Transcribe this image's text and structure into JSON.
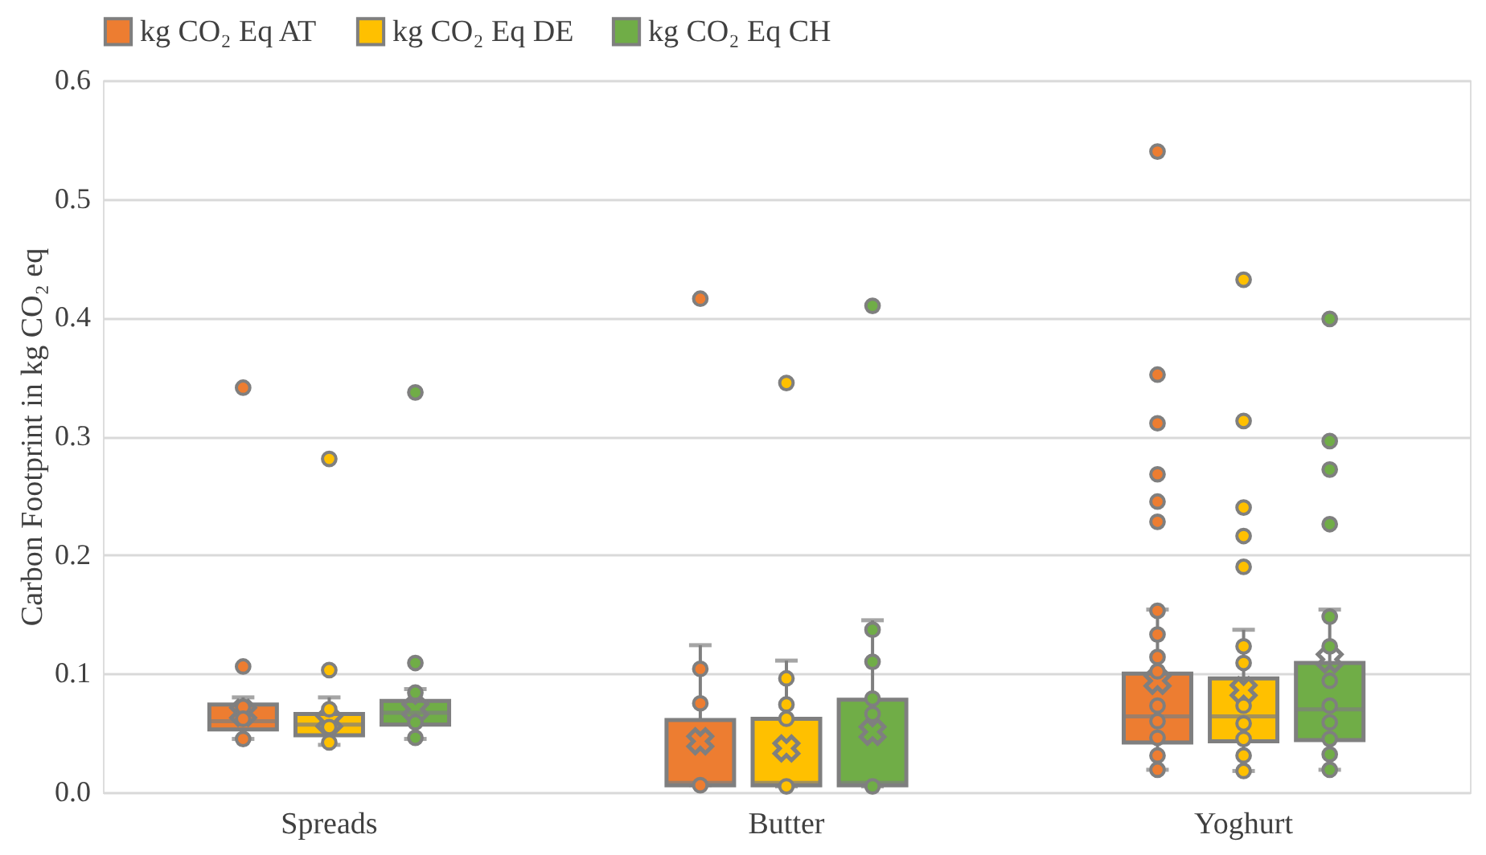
{
  "chart_data": {
    "type": "box",
    "ylabel": "Carbon Footprint in kg CO₂ eq",
    "categories": [
      "Spreads",
      "Butter",
      "Yoghurt"
    ],
    "ylim": [
      0,
      0.6
    ],
    "yticks": [
      {
        "value": 0,
        "label": "0.0"
      },
      {
        "value": 0.1,
        "label": "0.1"
      },
      {
        "value": 0.2,
        "label": "0.2"
      },
      {
        "value": 0.3,
        "label": "0.3"
      },
      {
        "value": 0.4,
        "label": "0.4"
      },
      {
        "value": 0.5,
        "label": "0.5"
      },
      {
        "value": 0.6,
        "label": "0.6"
      }
    ],
    "grid": "y",
    "legend": "top",
    "series": [
      {
        "name": "kg CO₂ Eq AT",
        "color": "#ed7d31",
        "boxes": [
          {
            "low": 0.045,
            "q1": 0.053,
            "median": 0.06,
            "q3": 0.074,
            "high": 0.08,
            "mean": 0.067,
            "outliers": [
              0.341,
              0.106,
              0.072,
              0.062,
              0.045
            ]
          },
          {
            "low": 0.006,
            "q1": 0.006,
            "median": 0.008,
            "q3": 0.061,
            "high": 0.124,
            "mean": 0.043,
            "outliers": [
              0.416,
              0.104,
              0.075,
              0.006
            ]
          },
          {
            "low": 0.019,
            "q1": 0.042,
            "median": 0.064,
            "q3": 0.1,
            "high": 0.154,
            "mean": 0.094,
            "outliers": [
              0.54,
              0.352,
              0.311,
              0.268,
              0.245,
              0.228,
              0.153,
              0.133,
              0.114,
              0.102,
              0.073,
              0.06,
              0.046,
              0.031,
              0.019
            ]
          }
        ]
      },
      {
        "name": "kg CO₂ Eq DE",
        "color": "#ffc000",
        "boxes": [
          {
            "low": 0.04,
            "q1": 0.048,
            "median": 0.057,
            "q3": 0.066,
            "high": 0.08,
            "mean": 0.06,
            "outliers": [
              0.281,
              0.103,
              0.07,
              0.055,
              0.042
            ]
          },
          {
            "low": 0.005,
            "q1": 0.006,
            "median": 0.008,
            "q3": 0.062,
            "high": 0.111,
            "mean": 0.037,
            "outliers": [
              0.345,
              0.096,
              0.074,
              0.062,
              0.005
            ]
          },
          {
            "low": 0.018,
            "q1": 0.043,
            "median": 0.064,
            "q3": 0.096,
            "high": 0.137,
            "mean": 0.086,
            "outliers": [
              0.432,
              0.313,
              0.24,
              0.216,
              0.19,
              0.123,
              0.109,
              0.073,
              0.058,
              0.045,
              0.031,
              0.018
            ]
          }
        ]
      },
      {
        "name": "kg CO₂ Eq CH",
        "color": "#70ad47",
        "boxes": [
          {
            "low": 0.045,
            "q1": 0.057,
            "median": 0.067,
            "q3": 0.077,
            "high": 0.087,
            "mean": 0.07,
            "outliers": [
              0.337,
              0.109,
              0.084,
              0.059,
              0.046
            ]
          },
          {
            "low": 0.005,
            "q1": 0.006,
            "median": 0.008,
            "q3": 0.078,
            "high": 0.145,
            "mean": 0.051,
            "outliers": [
              0.41,
              0.137,
              0.11,
              0.079,
              0.066,
              0.005
            ]
          },
          {
            "low": 0.019,
            "q1": 0.044,
            "median": 0.07,
            "q3": 0.109,
            "high": 0.154,
            "mean": 0.112,
            "outliers": [
              0.399,
              0.296,
              0.272,
              0.226,
              0.148,
              0.123,
              0.094,
              0.073,
              0.059,
              0.045,
              0.032,
              0.019
            ]
          }
        ]
      }
    ]
  }
}
